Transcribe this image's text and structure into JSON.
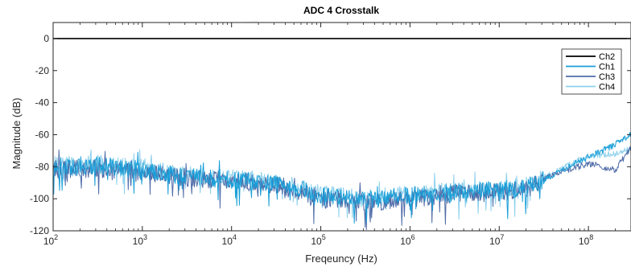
{
  "chart_data": {
    "type": "line",
    "title": "ADC 4 Crosstalk",
    "xlabel": "Freqeuncy (Hz)",
    "ylabel": "Magnitude (dB)",
    "xscale": "log",
    "xlim": [
      100,
      300000000
    ],
    "ylim": [
      -120,
      10
    ],
    "yticks": [
      "0",
      "-20",
      "-40",
      "-60",
      "-80",
      "-100",
      "-120"
    ],
    "xticks": [
      {
        "base": "10",
        "exp": "2"
      },
      {
        "base": "10",
        "exp": "3"
      },
      {
        "base": "10",
        "exp": "4"
      },
      {
        "base": "10",
        "exp": "5"
      },
      {
        "base": "10",
        "exp": "6"
      },
      {
        "base": "10",
        "exp": "7"
      },
      {
        "base": "10",
        "exp": "8"
      }
    ],
    "grid": false,
    "legend_position": "top-right",
    "series": [
      {
        "name": "Ch2",
        "color": "#000000",
        "x": [
          100,
          300000000
        ],
        "y": [
          0,
          0
        ]
      },
      {
        "name": "Ch1",
        "color": "#1a9fd8",
        "x": [
          100,
          300,
          1000,
          3000,
          10000,
          30000,
          100000,
          300000,
          1000000,
          3000000,
          10000000,
          20000000,
          40000000,
          100000000,
          200000000,
          300000000
        ],
        "y": [
          -80,
          -79,
          -82,
          -86,
          -88,
          -90,
          -98,
          -101,
          -98,
          -96,
          -95,
          -93,
          -85,
          -74,
          -66,
          -60
        ]
      },
      {
        "name": "Ch3",
        "color": "#4f6ca8",
        "x": [
          100,
          300,
          1000,
          3000,
          10000,
          30000,
          100000,
          300000,
          1000000,
          3000000,
          10000000,
          20000000,
          40000000,
          100000000,
          200000000,
          300000000
        ],
        "y": [
          -82,
          -81,
          -83,
          -87,
          -89,
          -91,
          -99,
          -103,
          -100,
          -97,
          -96,
          -94,
          -85,
          -78,
          -82,
          -68
        ]
      },
      {
        "name": "Ch4",
        "color": "#8ed1ec",
        "x": [
          100,
          300,
          1000,
          3000,
          10000,
          30000,
          100000,
          300000,
          1000000,
          3000000,
          10000000,
          20000000,
          40000000,
          100000000,
          200000000,
          300000000
        ],
        "y": [
          -79,
          -78,
          -81,
          -85,
          -87,
          -89,
          -97,
          -100,
          -97,
          -95,
          -94,
          -92,
          -84,
          -73,
          -72,
          -69
        ]
      }
    ]
  }
}
